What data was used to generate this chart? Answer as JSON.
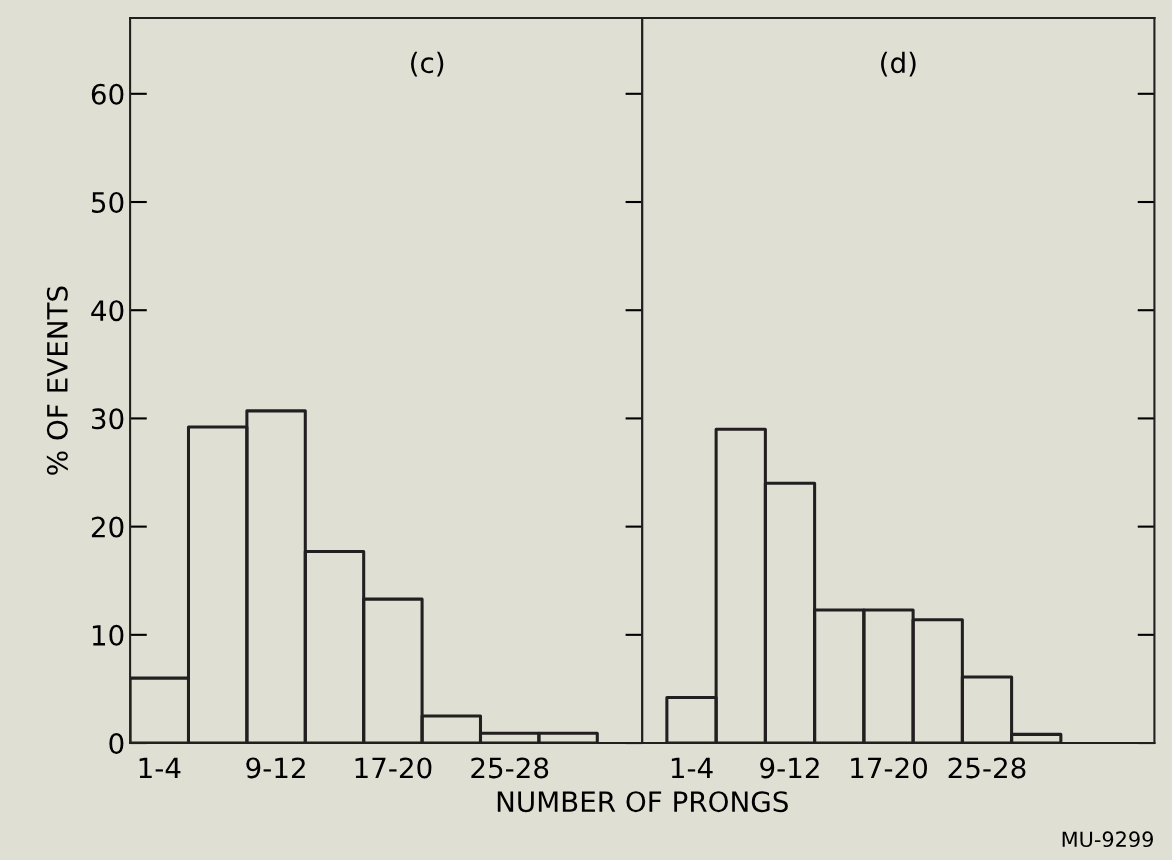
{
  "chart_data": [
    {
      "type": "bar",
      "xlabel": "NUMBER OF PRONGS",
      "ylabel": "% OF EVENTS",
      "annotations": [
        "(c)"
      ],
      "categories": [
        "1-4",
        null,
        "9-12",
        null,
        "17-20",
        null,
        "25-28",
        null
      ],
      "values": [
        6,
        29.2,
        30.7,
        17.7,
        13.3,
        2.5,
        0.9,
        0.9
      ],
      "color": "#231f20",
      "ylim": [
        0,
        67
      ],
      "yticks": [
        0,
        10,
        20,
        30,
        40,
        50,
        60
      ],
      "grid": false,
      "legend": false
    },
    {
      "type": "bar",
      "annotations": [
        "(d)",
        "MU-9299"
      ],
      "categories": [
        "1-4",
        null,
        "9-12",
        null,
        "17-20",
        null,
        "25-28",
        null
      ],
      "values": [
        4.2,
        29,
        24,
        12.3,
        12.3,
        11.4,
        6.1,
        0.8
      ],
      "color": "#231f20",
      "ylim": [
        0,
        67
      ],
      "yticks": [
        {
          "value": 0,
          "label": null
        },
        {
          "value": 10,
          "label": null
        },
        {
          "value": 20,
          "label": null
        },
        {
          "value": 30,
          "label": null
        },
        {
          "value": 40,
          "label": null
        },
        {
          "value": 50,
          "label": null
        },
        {
          "value": 60,
          "label": null
        }
      ],
      "tick_labels": "x",
      "grid": false,
      "legend": false
    }
  ]
}
